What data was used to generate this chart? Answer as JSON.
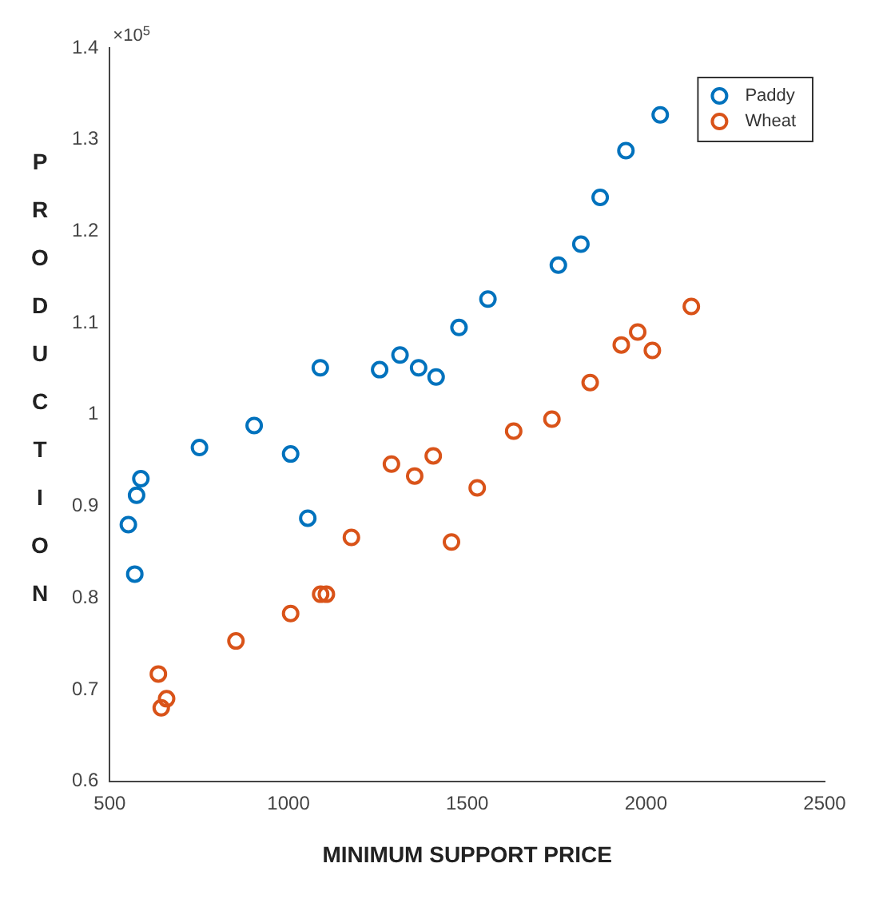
{
  "chart_data": {
    "type": "scatter",
    "xlabel": "MINIMUM SUPPORT PRICE",
    "ylabel": "PRODUCTION",
    "annotations": [
      "×10$^{5}$"
    ],
    "xlim": [
      500,
      2500
    ],
    "xticks": [
      500,
      1000,
      1500,
      2000,
      2500
    ],
    "ylim": [
      0.6,
      1.4
    ],
    "yticks": [
      0.6,
      0.7,
      0.8,
      0.9,
      1,
      1.1,
      1.2,
      1.3,
      1.4
    ],
    "grid": false,
    "legend": "top right",
    "marker": "circle",
    "series": [
      {
        "name": "Paddy",
        "color": "#0072bd",
        "x": [
          552,
          570,
          575,
          587,
          751,
          904,
          1006,
          1054,
          1089,
          1255,
          1312,
          1364,
          1413,
          1477,
          1558,
          1755,
          1818,
          1872,
          1944,
          2040
        ],
        "values": [
          0.88,
          0.826,
          0.912,
          0.93,
          0.964,
          0.988,
          0.957,
          0.887,
          1.051,
          1.049,
          1.065,
          1.051,
          1.041,
          1.095,
          1.126,
          1.163,
          1.186,
          1.237,
          1.288,
          1.327
        ]
      },
      {
        "name": "Wheat",
        "color": "#d95319",
        "x": [
          636,
          659,
          644,
          853,
          1006,
          1090,
          1106,
          1176,
          1288,
          1353,
          1405,
          1456,
          1528,
          1630,
          1737,
          1844,
          1931,
          1977,
          2018,
          2127
        ],
        "values": [
          0.717,
          0.69,
          0.68,
          0.753,
          0.783,
          0.804,
          0.804,
          0.866,
          0.946,
          0.933,
          0.955,
          0.861,
          0.92,
          0.982,
          0.995,
          1.035,
          1.076,
          1.09,
          1.07,
          1.118
        ]
      }
    ]
  }
}
